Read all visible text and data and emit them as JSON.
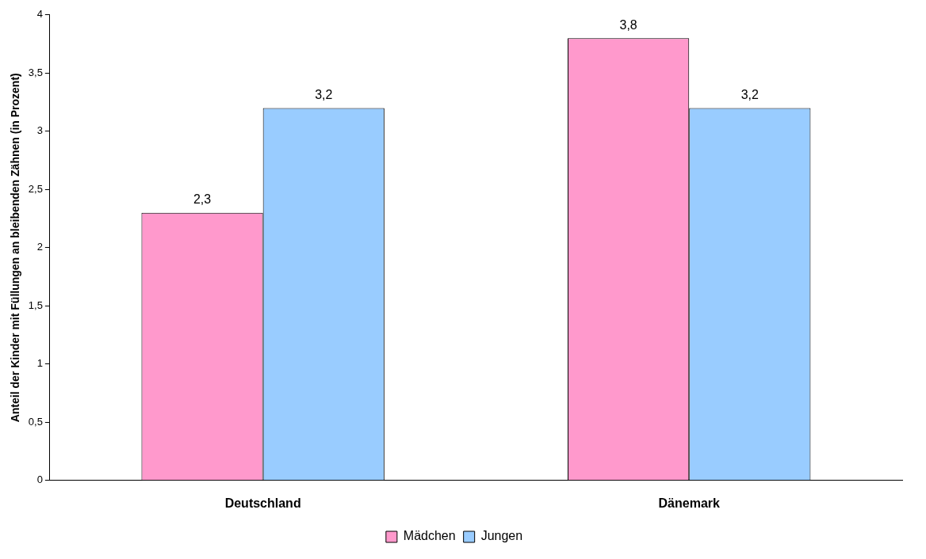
{
  "chart_data": {
    "type": "bar",
    "ylabel": "Anteil der Kinder mit Füllungen an bleibenden Zähnen (in Prozent)",
    "categories": [
      "Deutschland",
      "Dänemark"
    ],
    "series": [
      {
        "name": "Mädchen",
        "color": "#ff99cc",
        "values": [
          2.3,
          3.8
        ],
        "value_labels": [
          "2,3",
          "3,8"
        ]
      },
      {
        "name": "Jungen",
        "color": "#99ccff",
        "values": [
          3.2,
          3.2
        ],
        "value_labels": [
          "3,2",
          "3,2"
        ]
      }
    ],
    "ylim": [
      0,
      4
    ],
    "yticks": [
      0,
      {
        "value": 0.5,
        "label": "0,5"
      },
      1,
      {
        "value": 1.5,
        "label": "1,5"
      },
      2,
      {
        "value": 2.5,
        "label": "2,5"
      },
      3,
      {
        "value": 3.5,
        "label": "3,5"
      },
      4
    ],
    "grid": false,
    "legend": "bottom"
  }
}
